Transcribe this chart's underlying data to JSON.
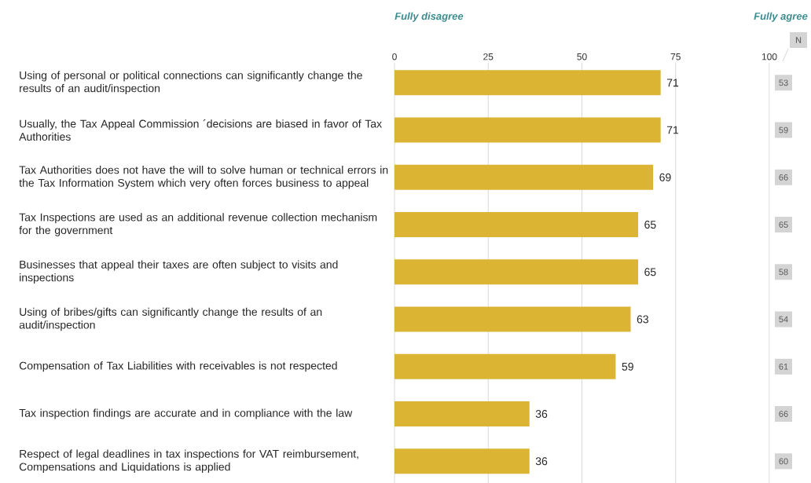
{
  "chart_data": {
    "type": "bar",
    "orientation": "horizontal",
    "categories": [
      "Using of personal or political connections can significantly change the results of an audit/inspection",
      "Usually, the Tax Appeal Commission ´decisions are biased in favor of Tax Authorities",
      "Tax Authorities does not have the will to solve human or technical errors in the Tax Information System which very often forces business to appeal",
      "Tax Inspections are used as an additional revenue collection mechanism for the government",
      "Businesses that appeal their taxes are often subject to visits and inspections",
      "Using of bribes/gifts can significantly change the results of an audit/inspection",
      "Compensation of Tax Liabilities with receivables is not respected",
      "Tax inspection findings are accurate and in compliance with the law",
      "Respect of legal deadlines in tax inspections for VAT reimbursement, Compensations and Liquidations is applied"
    ],
    "values": [
      71,
      71,
      69,
      65,
      65,
      63,
      59,
      36,
      36
    ],
    "color": "#dbb434",
    "xlim": [
      0,
      100
    ],
    "xticks": [
      0,
      25,
      50,
      75,
      100
    ],
    "grid": "x",
    "data_labels": true,
    "annotations": [
      "Fully disagree",
      "Fully agree",
      "N",
      "53",
      "59",
      "66",
      "65",
      "58",
      "54",
      "61",
      "66",
      "60"
    ]
  }
}
